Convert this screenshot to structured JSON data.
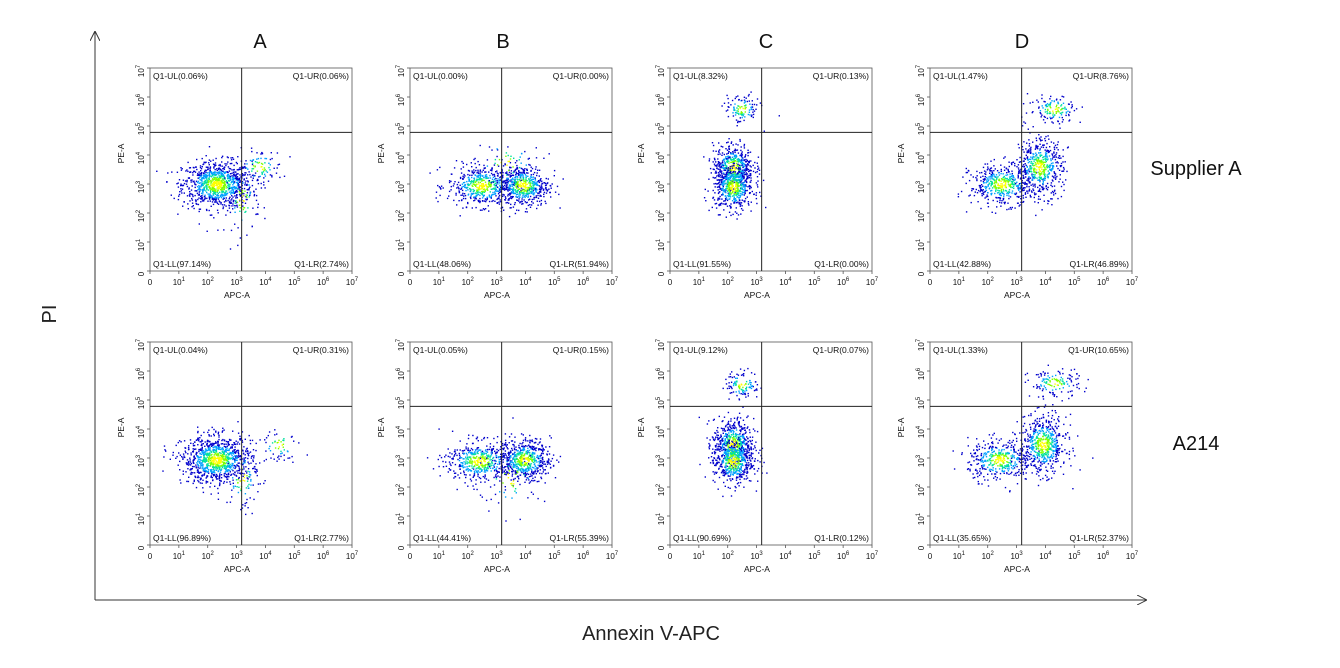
{
  "figure": {
    "y_axis_title": "PI",
    "x_axis_title": "Annexin V-APC",
    "column_labels": [
      "A",
      "B",
      "C",
      "D"
    ],
    "row_labels": [
      "Supplier A",
      "A214"
    ]
  },
  "chart_data": {
    "type": "scatter",
    "x_axis": {
      "label": "APC-A",
      "scale": "log",
      "ticks": [
        "0",
        "10^1",
        "10^2",
        "10^3",
        "10^4",
        "10^5",
        "10^6",
        "10^7"
      ]
    },
    "y_axis": {
      "label": "PE-A",
      "scale": "log",
      "ticks": [
        "0",
        "10^1",
        "10^2",
        "10^3",
        "10^4",
        "10^5",
        "10^6",
        "10^7"
      ]
    },
    "gate": {
      "x": 1500,
      "y": 60000
    },
    "color_scale": [
      "#0000cc",
      "#00a0ff",
      "#00e0a0",
      "#80ff00",
      "#ffff00",
      "#ff8000",
      "#ff0000"
    ],
    "panels": [
      {
        "row": "Supplier A",
        "column": "A",
        "quadrants": {
          "UL": "Q1-UL(0.06%)",
          "UR": "Q1-UR(0.06%)",
          "LL": "Q1-LL(97.14%)",
          "LR": "Q1-LR(2.74%)"
        },
        "clusters": [
          {
            "x": 200,
            "y": 1000,
            "spread_x": 0.6,
            "spread_y": 0.4,
            "weight": 0.85
          },
          {
            "x": 6000,
            "y": 4000,
            "spread_x": 0.4,
            "spread_y": 0.3,
            "weight": 0.08
          },
          {
            "x": 1500,
            "y": 300,
            "spread_x": 0.3,
            "spread_y": 0.6,
            "weight": 0.07
          }
        ]
      },
      {
        "row": "Supplier A",
        "column": "B",
        "quadrants": {
          "UL": "Q1-UL(0.00%)",
          "UR": "Q1-UR(0.00%)",
          "LL": "Q1-LL(48.06%)",
          "LR": "Q1-LR(51.94%)"
        },
        "clusters": [
          {
            "x": 300,
            "y": 900,
            "spread_x": 0.6,
            "spread_y": 0.35,
            "weight": 0.48
          },
          {
            "x": 8000,
            "y": 900,
            "spread_x": 0.45,
            "spread_y": 0.35,
            "weight": 0.47
          },
          {
            "x": 2000,
            "y": 5000,
            "spread_x": 0.6,
            "spread_y": 0.5,
            "weight": 0.05
          }
        ]
      },
      {
        "row": "Supplier A",
        "column": "C",
        "quadrants": {
          "UL": "Q1-UL(8.32%)",
          "UR": "Q1-UR(0.13%)",
          "LL": "Q1-LL(91.55%)",
          "LR": "Q1-LR(0.00%)"
        },
        "clusters": [
          {
            "x": 150,
            "y": 4000,
            "spread_x": 0.35,
            "spread_y": 0.4,
            "weight": 0.45
          },
          {
            "x": 150,
            "y": 800,
            "spread_x": 0.35,
            "spread_y": 0.4,
            "weight": 0.45
          },
          {
            "x": 300,
            "y": 400000,
            "spread_x": 0.3,
            "spread_y": 0.25,
            "weight": 0.1
          }
        ]
      },
      {
        "row": "Supplier A",
        "column": "D",
        "quadrants": {
          "UL": "Q1-UL(1.47%)",
          "UR": "Q1-UR(8.76%)",
          "LL": "Q1-LL(42.88%)",
          "LR": "Q1-LR(46.89%)"
        },
        "clusters": [
          {
            "x": 300,
            "y": 1000,
            "spread_x": 0.55,
            "spread_y": 0.35,
            "weight": 0.42
          },
          {
            "x": 6000,
            "y": 4000,
            "spread_x": 0.4,
            "spread_y": 0.5,
            "weight": 0.46
          },
          {
            "x": 20000,
            "y": 400000,
            "spread_x": 0.45,
            "spread_y": 0.25,
            "weight": 0.12
          }
        ]
      },
      {
        "row": "A214",
        "column": "A",
        "quadrants": {
          "UL": "Q1-UL(0.04%)",
          "UR": "Q1-UR(0.31%)",
          "LL": "Q1-LL(96.89%)",
          "LR": "Q1-LR(2.77%)"
        },
        "clusters": [
          {
            "x": 200,
            "y": 900,
            "spread_x": 0.6,
            "spread_y": 0.4,
            "weight": 0.88
          },
          {
            "x": 30000,
            "y": 3000,
            "spread_x": 0.35,
            "spread_y": 0.3,
            "weight": 0.05
          },
          {
            "x": 1500,
            "y": 200,
            "spread_x": 0.3,
            "spread_y": 0.6,
            "weight": 0.07
          }
        ]
      },
      {
        "row": "A214",
        "column": "B",
        "quadrants": {
          "UL": "Q1-UL(0.05%)",
          "UR": "Q1-UR(0.15%)",
          "LL": "Q1-LL(44.41%)",
          "LR": "Q1-LR(55.39%)"
        },
        "clusters": [
          {
            "x": 250,
            "y": 800,
            "spread_x": 0.6,
            "spread_y": 0.35,
            "weight": 0.44
          },
          {
            "x": 9000,
            "y": 900,
            "spread_x": 0.45,
            "spread_y": 0.35,
            "weight": 0.5
          },
          {
            "x": 3000,
            "y": 200,
            "spread_x": 0.6,
            "spread_y": 0.6,
            "weight": 0.06
          }
        ]
      },
      {
        "row": "A214",
        "column": "C",
        "quadrants": {
          "UL": "Q1-UL(9.12%)",
          "UR": "Q1-UR(0.07%)",
          "LL": "Q1-LL(90.69%)",
          "LR": "Q1-LR(0.12%)"
        },
        "clusters": [
          {
            "x": 150,
            "y": 3000,
            "spread_x": 0.35,
            "spread_y": 0.45,
            "weight": 0.5
          },
          {
            "x": 150,
            "y": 800,
            "spread_x": 0.35,
            "spread_y": 0.4,
            "weight": 0.4
          },
          {
            "x": 300,
            "y": 350000,
            "spread_x": 0.3,
            "spread_y": 0.25,
            "weight": 0.1
          }
        ]
      },
      {
        "row": "A214",
        "column": "D",
        "quadrants": {
          "UL": "Q1-UL(1.33%)",
          "UR": "Q1-UR(10.65%)",
          "LL": "Q1-LL(35.65%)",
          "LR": "Q1-LR(52.37%)"
        },
        "clusters": [
          {
            "x": 250,
            "y": 900,
            "spread_x": 0.55,
            "spread_y": 0.35,
            "weight": 0.36
          },
          {
            "x": 8000,
            "y": 3000,
            "spread_x": 0.4,
            "spread_y": 0.5,
            "weight": 0.52
          },
          {
            "x": 20000,
            "y": 400000,
            "spread_x": 0.45,
            "spread_y": 0.25,
            "weight": 0.12
          }
        ]
      }
    ]
  }
}
